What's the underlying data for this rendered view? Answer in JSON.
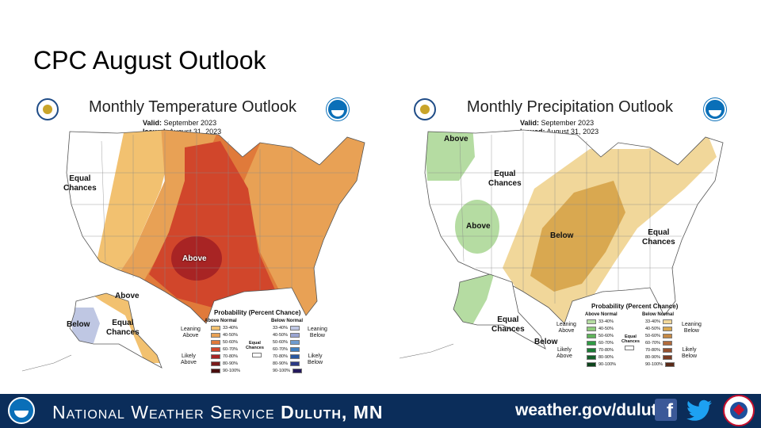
{
  "slide": {
    "title": "CPC August Outlook"
  },
  "temperature": {
    "title": "Monthly Temperature Outlook",
    "valid_label": "Valid:",
    "valid_value": "September 2023",
    "issued_label": "Issued:",
    "issued_value": "August 31, 2023",
    "regions": {
      "equal_chances_west": "Equal\nChances",
      "above_center": "Above",
      "alaska_above": "Above",
      "alaska_below": "Below",
      "alaska_equal": "Equal\nChances"
    },
    "colors": {
      "a33": "#f2c170",
      "a40": "#e8a155",
      "a50": "#e07a3a",
      "a60": "#d1462b",
      "a70": "#a82424",
      "b33": "#bfc7e3",
      "b40": "#9aa5d1"
    }
  },
  "precipitation": {
    "title": "Monthly Precipitation Outlook",
    "valid_label": "Valid:",
    "valid_value": "September 2023",
    "issued_label": "Issued:",
    "issued_value": "August 31, 2023",
    "regions": {
      "above_nw": "Above",
      "equal_chances_nw": "Equal\nChances",
      "above_west": "Above",
      "below_center": "Below",
      "equal_chances_se": "Equal\nChances",
      "alaska_equal": "Equal\nChances",
      "alaska_below": "Below"
    },
    "colors": {
      "a33": "#b5dca2",
      "b33": "#f1d79a",
      "b40": "#d9a850"
    }
  },
  "legend_temp": {
    "title": "Probability (Percent Chance)",
    "head_above": "Above Normal",
    "head_below": "Below Normal",
    "leaning_above": "Leaning\nAbove",
    "likely_above": "Likely\nAbove",
    "leaning_below": "Leaning\nBelow",
    "likely_below": "Likely\nBelow",
    "equal": "Equal\nChances",
    "levels": [
      "33-40%",
      "40-50%",
      "50-60%",
      "60-70%",
      "70-80%",
      "80-90%",
      "90-100%"
    ],
    "above_colors": [
      "#f2c170",
      "#e8a155",
      "#e07a3a",
      "#d1462b",
      "#a82424",
      "#7a1a1a",
      "#4a0e0e"
    ],
    "below_colors": [
      "#bfc7e3",
      "#9aa5d1",
      "#6f9ccf",
      "#3f7fc0",
      "#2a58a0",
      "#2c3a85",
      "#24185c"
    ]
  },
  "legend_precip": {
    "title": "Probability (Percent Chance)",
    "head_above": "Above Normal",
    "head_below": "Below Normal",
    "leaning_above": "Leaning\nAbove",
    "likely_above": "Likely\nAbove",
    "leaning_below": "Leaning\nBelow",
    "likely_below": "Likely\nBelow",
    "equal": "Equal\nChances",
    "levels": [
      "33-40%",
      "40-50%",
      "50-60%",
      "60-70%",
      "70-80%",
      "80-90%",
      "90-100%"
    ],
    "above_colors": [
      "#b5dca2",
      "#8fcc7c",
      "#5eb35a",
      "#2f9a44",
      "#1c7a36",
      "#146029",
      "#0c441c"
    ],
    "below_colors": [
      "#f1d79a",
      "#d9a850",
      "#c58945",
      "#b06a3b",
      "#95502f",
      "#7a3b22",
      "#5a2a18"
    ]
  },
  "footer": {
    "org_prefix": "National Weather Service",
    "org_office": "Duluth, MN",
    "url": "weather.gov/duluth",
    "facebook_glyph": "f"
  }
}
